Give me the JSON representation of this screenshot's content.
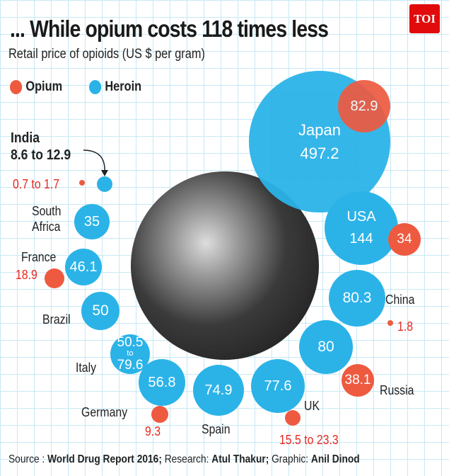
{
  "logo": "TOI",
  "colors": {
    "opium": "#ee5a40",
    "heroin": "#2bb3e8"
  },
  "chart_data": {
    "type": "bubble",
    "title": "... While opium costs 118 times less",
    "subtitle": "Retail price of opioids (US $ per gram)",
    "legend": [
      {
        "name": "Opium",
        "color": "#ee5a40"
      },
      {
        "name": "Heroin",
        "color": "#2bb3e8"
      }
    ],
    "countries": [
      {
        "name": "Japan",
        "heroin": "497.2",
        "opium": "82.9"
      },
      {
        "name": "India",
        "heroin": "8.6 to 12.9",
        "opium": "0.7 to 1.7"
      },
      {
        "name": "South Africa",
        "heroin": "35"
      },
      {
        "name": "France",
        "heroin": "46.1",
        "opium": "18.9"
      },
      {
        "name": "Brazil",
        "heroin": "50"
      },
      {
        "name": "Italy",
        "heroin": "50.5 to 79.6"
      },
      {
        "name": "Germany",
        "heroin": "56.8",
        "opium": "9.3"
      },
      {
        "name": "Spain",
        "heroin": "74.9"
      },
      {
        "name": "UK",
        "heroin": "77.6",
        "opium": "15.5 to 23.3"
      },
      {
        "name": "Russia",
        "heroin": "80",
        "opium": "38.1"
      },
      {
        "name": "China",
        "heroin": "80.3",
        "opium": "1.8"
      },
      {
        "name": "USA",
        "heroin": "144",
        "opium": "34"
      }
    ]
  },
  "source": {
    "prefix": "Source : ",
    "report": "World Drug Report 2016;",
    "research_label": " Research: ",
    "research": "Atul Thakur;",
    "graphic_label": " Graphic: ",
    "graphic": "Anil Dinod"
  }
}
